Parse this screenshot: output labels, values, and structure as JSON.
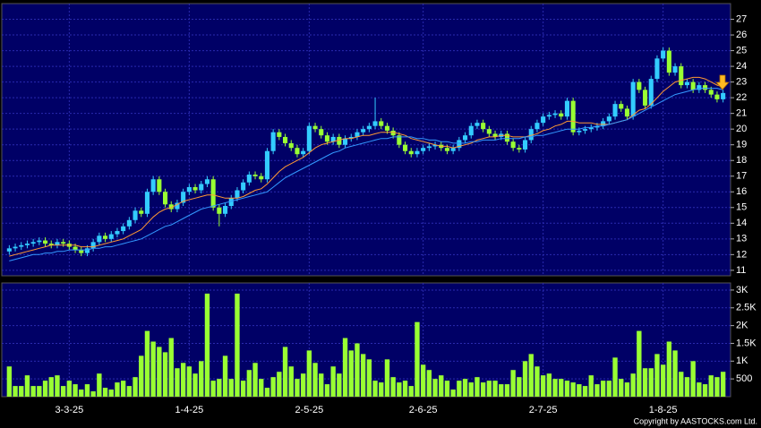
{
  "chart_data": {
    "type": "candlestick",
    "categories": [
      null,
      null,
      null,
      null,
      null,
      null,
      null,
      null,
      null,
      null,
      "3-3-25",
      null,
      null,
      null,
      null,
      null,
      null,
      null,
      null,
      null,
      null,
      null,
      null,
      null,
      null,
      null,
      null,
      null,
      null,
      null,
      "1-4-25",
      null,
      null,
      null,
      null,
      null,
      null,
      null,
      null,
      null,
      null,
      null,
      null,
      null,
      null,
      null,
      null,
      null,
      null,
      null,
      "2-5-25",
      null,
      null,
      null,
      null,
      null,
      null,
      null,
      null,
      null,
      null,
      null,
      null,
      null,
      null,
      null,
      null,
      null,
      null,
      "2-6-25",
      null,
      null,
      null,
      null,
      null,
      null,
      null,
      null,
      null,
      null,
      null,
      null,
      null,
      null,
      null,
      null,
      null,
      null,
      null,
      "2-7-25",
      null,
      null,
      null,
      null,
      null,
      null,
      null,
      null,
      null,
      null,
      null,
      null,
      null,
      null,
      null,
      null,
      null,
      null,
      null,
      "1-8-25",
      null,
      null,
      null,
      null,
      null,
      null,
      null,
      null,
      null,
      null
    ],
    "open": [
      12.2,
      12.4,
      12.5,
      12.6,
      12.7,
      12.8,
      12.9,
      12.7,
      12.6,
      12.8,
      12.7,
      12.5,
      12.3,
      12.1,
      12.4,
      12.8,
      13.2,
      13.0,
      13.3,
      13.5,
      13.8,
      14.2,
      14.8,
      14.6,
      16.0,
      16.8,
      16.0,
      15.2,
      14.9,
      15.3,
      16.0,
      16.3,
      16.1,
      16.5,
      16.8,
      15.0,
      14.6,
      15.1,
      15.6,
      16.1,
      16.6,
      17.1,
      17.0,
      16.8,
      18.6,
      19.8,
      19.5,
      19.1,
      18.8,
      18.4,
      18.6,
      20.2,
      20.0,
      19.6,
      19.2,
      19.5,
      19.0,
      19.4,
      19.5,
      19.8,
      20.0,
      20.2,
      20.5,
      20.2,
      19.9,
      19.6,
      19.0,
      18.6,
      18.4,
      18.6,
      18.8,
      18.9,
      19.0,
      18.8,
      18.6,
      18.8,
      19.3,
      19.6,
      20.2,
      20.4,
      20.0,
      19.7,
      19.5,
      19.7,
      19.2,
      18.8,
      18.7,
      19.3,
      20.0,
      20.4,
      20.8,
      20.9,
      21.0,
      20.8,
      21.8,
      19.8,
      19.9,
      20.0,
      20.1,
      20.2,
      20.5,
      20.8,
      21.6,
      21.3,
      20.8,
      23.0,
      22.5,
      21.5,
      23.2,
      24.5,
      25.0,
      23.6,
      24.0,
      22.8,
      23.0,
      22.5,
      22.8,
      22.5,
      22.2,
      21.9
    ],
    "high": [
      12.6,
      12.7,
      12.8,
      12.9,
      13.0,
      13.1,
      13.1,
      12.9,
      13.0,
      13.0,
      12.9,
      12.7,
      12.5,
      12.6,
      13.0,
      13.4,
      13.4,
      13.5,
      13.7,
      14.0,
      14.4,
      15.0,
      15.0,
      16.2,
      17.0,
      17.0,
      16.2,
      15.4,
      15.5,
      16.2,
      16.5,
      16.5,
      16.7,
      17.0,
      17.0,
      15.2,
      15.3,
      15.8,
      16.3,
      16.8,
      17.3,
      17.3,
      17.2,
      18.8,
      20.0,
      20.0,
      19.7,
      19.3,
      19.0,
      18.8,
      20.4,
      20.4,
      20.2,
      19.8,
      19.7,
      19.7,
      19.6,
      19.7,
      20.0,
      20.2,
      20.4,
      22.0,
      20.7,
      20.4,
      20.1,
      19.8,
      19.2,
      18.8,
      18.8,
      19.0,
      19.1,
      19.2,
      19.2,
      19.0,
      19.0,
      19.5,
      19.8,
      20.4,
      20.6,
      20.6,
      20.2,
      19.9,
      19.9,
      19.9,
      19.4,
      19.0,
      19.5,
      20.2,
      20.6,
      21.0,
      21.1,
      21.2,
      21.2,
      22.0,
      22.0,
      20.1,
      20.2,
      20.3,
      20.4,
      20.7,
      21.0,
      21.8,
      21.8,
      21.5,
      23.2,
      23.2,
      22.7,
      23.4,
      24.7,
      25.2,
      25.2,
      24.2,
      24.2,
      23.2,
      23.2,
      23.0,
      23.0,
      22.7,
      22.4,
      22.5
    ],
    "low": [
      12.0,
      12.2,
      12.3,
      12.4,
      12.5,
      12.6,
      12.5,
      12.4,
      12.4,
      12.5,
      12.3,
      12.1,
      11.9,
      11.9,
      12.2,
      12.6,
      12.8,
      12.8,
      13.1,
      13.3,
      13.6,
      14.0,
      14.4,
      14.4,
      15.8,
      15.8,
      15.0,
      14.7,
      14.7,
      15.1,
      15.8,
      15.9,
      15.9,
      16.3,
      14.8,
      13.8,
      14.4,
      14.9,
      15.4,
      15.9,
      16.4,
      16.8,
      16.6,
      16.6,
      18.4,
      19.3,
      18.9,
      18.6,
      18.2,
      18.2,
      18.4,
      19.8,
      19.4,
      19.0,
      19.0,
      18.8,
      18.8,
      19.2,
      19.3,
      19.6,
      19.8,
      20.0,
      20.0,
      19.7,
      19.4,
      18.8,
      18.4,
      18.2,
      18.2,
      18.4,
      18.6,
      18.7,
      18.6,
      18.4,
      18.4,
      18.6,
      19.1,
      19.4,
      20.0,
      19.8,
      19.5,
      19.3,
      19.3,
      19.0,
      18.6,
      18.5,
      18.5,
      19.1,
      19.8,
      20.2,
      20.6,
      20.7,
      20.6,
      20.6,
      19.6,
      19.6,
      19.7,
      19.8,
      19.9,
      20.0,
      20.3,
      20.6,
      21.1,
      20.6,
      20.6,
      22.3,
      21.3,
      21.3,
      23.0,
      24.3,
      23.4,
      23.4,
      22.6,
      22.6,
      22.3,
      22.3,
      22.3,
      22.0,
      21.7,
      21.7
    ],
    "close": [
      12.4,
      12.5,
      12.6,
      12.7,
      12.8,
      12.9,
      12.7,
      12.6,
      12.8,
      12.7,
      12.5,
      12.3,
      12.1,
      12.4,
      12.8,
      13.2,
      13.0,
      13.3,
      13.5,
      13.8,
      14.2,
      14.8,
      14.6,
      16.0,
      16.8,
      16.0,
      15.2,
      14.9,
      15.3,
      16.0,
      16.3,
      16.1,
      16.5,
      16.8,
      15.0,
      14.6,
      15.1,
      15.6,
      16.1,
      16.6,
      17.1,
      17.0,
      16.8,
      18.6,
      19.8,
      19.5,
      19.1,
      18.8,
      18.4,
      18.6,
      20.2,
      20.0,
      19.6,
      19.2,
      19.5,
      19.0,
      19.4,
      19.5,
      19.8,
      20.0,
      20.2,
      20.5,
      20.2,
      19.9,
      19.6,
      19.0,
      18.6,
      18.4,
      18.6,
      18.8,
      18.9,
      19.0,
      18.8,
      18.6,
      18.8,
      19.3,
      19.6,
      20.2,
      20.4,
      20.0,
      19.7,
      19.5,
      19.7,
      19.2,
      18.8,
      18.7,
      19.3,
      20.0,
      20.4,
      20.8,
      20.9,
      21.0,
      20.8,
      21.8,
      19.8,
      19.9,
      20.0,
      20.1,
      20.2,
      20.5,
      20.8,
      21.6,
      21.3,
      20.8,
      23.0,
      22.5,
      21.5,
      23.2,
      24.5,
      25.0,
      23.6,
      24.0,
      22.8,
      23.0,
      22.5,
      22.8,
      22.5,
      22.2,
      21.9,
      22.3
    ],
    "up_color": "#33ccff",
    "down_color": "#99ff33",
    "ma": [
      {
        "color": "#ff9933",
        "values": [
          11.9,
          12.0,
          12.1,
          12.2,
          12.3,
          12.4,
          12.5,
          12.6,
          12.6,
          12.6,
          12.6,
          12.6,
          12.5,
          12.5,
          12.5,
          12.6,
          12.7,
          12.8,
          12.9,
          13.0,
          13.2,
          13.4,
          13.6,
          14.0,
          14.4,
          14.7,
          14.9,
          15.0,
          15.2,
          15.4,
          15.5,
          15.6,
          15.7,
          15.8,
          15.8,
          15.7,
          15.6,
          15.6,
          15.6,
          15.7,
          15.9,
          16.1,
          16.2,
          16.5,
          16.9,
          17.3,
          17.6,
          17.8,
          18.0,
          18.2,
          18.5,
          18.8,
          19.0,
          19.1,
          19.2,
          19.3,
          19.4,
          19.4,
          19.5,
          19.6,
          19.6,
          19.7,
          19.8,
          19.8,
          19.8,
          19.7,
          19.6,
          19.4,
          19.3,
          19.2,
          19.1,
          19.0,
          18.9,
          18.9,
          18.8,
          18.9,
          19.0,
          19.1,
          19.3,
          19.4,
          19.5,
          19.5,
          19.6,
          19.6,
          19.5,
          19.5,
          19.5,
          19.6,
          19.7,
          19.9,
          20.0,
          20.2,
          20.3,
          20.5,
          20.5,
          20.4,
          20.4,
          20.4,
          20.3,
          20.3,
          20.3,
          20.4,
          20.5,
          20.6,
          20.9,
          21.2,
          21.3,
          21.6,
          22.0,
          22.4,
          22.7,
          23.0,
          23.1,
          23.2,
          23.3,
          23.3,
          23.2,
          23.0,
          22.8,
          22.7
        ]
      },
      {
        "color": "#3399ff",
        "values": [
          11.6,
          11.7,
          11.8,
          11.9,
          12.0,
          12.0,
          12.1,
          12.1,
          12.2,
          12.2,
          12.3,
          12.3,
          12.3,
          12.3,
          12.4,
          12.4,
          12.5,
          12.5,
          12.6,
          12.7,
          12.8,
          12.9,
          13.0,
          13.2,
          13.4,
          13.6,
          13.8,
          13.9,
          14.1,
          14.3,
          14.5,
          14.7,
          14.9,
          15.0,
          15.1,
          15.2,
          15.3,
          15.4,
          15.5,
          15.6,
          15.7,
          15.8,
          15.9,
          16.0,
          16.3,
          16.6,
          16.9,
          17.1,
          17.3,
          17.5,
          17.7,
          17.9,
          18.1,
          18.3,
          18.5,
          18.6,
          18.8,
          18.9,
          19.0,
          19.1,
          19.2,
          19.3,
          19.4,
          19.4,
          19.5,
          19.5,
          19.5,
          19.5,
          19.4,
          19.4,
          19.3,
          19.3,
          19.2,
          19.2,
          19.1,
          19.1,
          19.1,
          19.2,
          19.2,
          19.3,
          19.3,
          19.3,
          19.4,
          19.4,
          19.4,
          19.4,
          19.5,
          19.5,
          19.6,
          19.6,
          19.7,
          19.8,
          19.9,
          20.0,
          20.0,
          20.0,
          20.1,
          20.1,
          20.2,
          20.2,
          20.3,
          20.4,
          20.5,
          20.6,
          20.8,
          21.0,
          21.2,
          21.4,
          21.6,
          21.8,
          22.0,
          22.2,
          22.3,
          22.4,
          22.5,
          22.6,
          22.6,
          22.6,
          22.6,
          22.5
        ]
      }
    ],
    "ylim": [
      10.65,
      28.0
    ],
    "yticks": [
      11,
      12,
      13,
      14,
      15,
      16,
      17,
      18,
      19,
      20,
      21,
      22,
      23,
      24,
      25,
      26,
      27
    ],
    "volume": [
      850,
      300,
      300,
      600,
      300,
      300,
      450,
      550,
      600,
      300,
      450,
      350,
      200,
      350,
      150,
      650,
      250,
      200,
      400,
      450,
      300,
      550,
      1150,
      1850,
      1550,
      1400,
      1250,
      1650,
      800,
      950,
      850,
      650,
      1000,
      2900,
      450,
      500,
      1150,
      500,
      2900,
      450,
      750,
      950,
      500,
      250,
      550,
      700,
      1400,
      850,
      500,
      650,
      1300,
      950,
      650,
      350,
      850,
      650,
      1650,
      1300,
      1500,
      1200,
      1050,
      450,
      400,
      1050,
      550,
      400,
      450,
      300,
      2100,
      900,
      750,
      500,
      600,
      450,
      200,
      450,
      500,
      400,
      550,
      400,
      450,
      450,
      350,
      350,
      750,
      550,
      1000,
      1200,
      850,
      600,
      650,
      500,
      500,
      450,
      400,
      350,
      300,
      600,
      350,
      450,
      450,
      1100,
      500,
      400,
      650,
      1850,
      800,
      800,
      1200,
      900,
      1550,
      1300,
      700,
      550,
      1000,
      400,
      350,
      600,
      550,
      700
    ],
    "volume_color": "#99ff33",
    "vlim": [
      0,
      3200
    ],
    "vticks": [
      500,
      {
        "value": 1000,
        "label": "1K"
      },
      {
        "value": 1500,
        "label": "1.5K"
      },
      {
        "value": 2000,
        "label": "2K"
      },
      {
        "value": 2500,
        "label": "2.5K"
      },
      {
        "value": 3000,
        "label": "3K"
      }
    ],
    "grid": true,
    "copyright": "Copyright by AASTOCKS.com Ltd."
  }
}
